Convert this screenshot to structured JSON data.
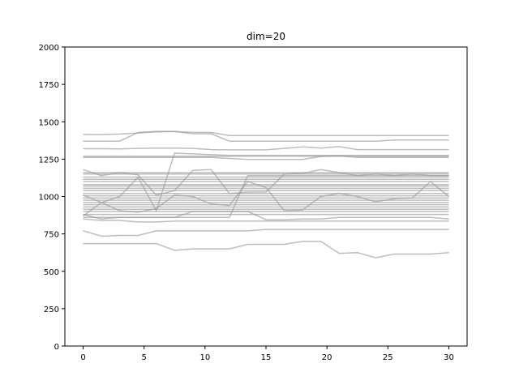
{
  "chart_data": {
    "type": "line",
    "title": "dim=20",
    "xlabel": "",
    "ylabel": "",
    "xlim": [
      -1.5,
      31.5
    ],
    "ylim": [
      0,
      2000
    ],
    "xticks": [
      0,
      5,
      10,
      15,
      20,
      25,
      30
    ],
    "yticks": [
      0,
      250,
      500,
      750,
      1000,
      1250,
      1500,
      1750,
      2000
    ],
    "grid": false,
    "legend": "none",
    "line_color": "#9a9a9a",
    "x": [
      0,
      1.5,
      3,
      4.5,
      6,
      7.5,
      9,
      10.5,
      12,
      13.5,
      15,
      16.5,
      18,
      19.5,
      21,
      22.5,
      24,
      25.5,
      27,
      28.5,
      30
    ],
    "series": [
      {
        "values": [
          1415,
          1414,
          1418,
          1425,
          1432,
          1434,
          1430,
          1428,
          1408,
          1408,
          1408,
          1408,
          1408,
          1408,
          1408,
          1408,
          1408,
          1408,
          1408,
          1408,
          1408
        ]
      },
      {
        "values": [
          1370,
          1370,
          1370,
          1428,
          1436,
          1436,
          1420,
          1420,
          1370,
          1370,
          1370,
          1370,
          1370,
          1370,
          1370,
          1370,
          1370,
          1378,
          1378,
          1378,
          1378
        ]
      },
      {
        "values": [
          1320,
          1320,
          1318,
          1322,
          1324,
          1324,
          1322,
          1314,
          1312,
          1312,
          1312,
          1322,
          1332,
          1324,
          1334,
          1314,
          1314,
          1314,
          1314,
          1314,
          1314
        ]
      },
      {
        "values": [
          1270,
          1270,
          1270,
          1270,
          1270,
          1270,
          1270,
          1270,
          1270,
          1270,
          1270,
          1270,
          1270,
          1270,
          1270,
          1270,
          1270,
          1270,
          1270,
          1270,
          1270
        ]
      },
      {
        "values": [
          1262,
          1262,
          1262,
          1262,
          1262,
          1262,
          1262,
          1262,
          1255,
          1248,
          1248,
          1248,
          1248,
          1268,
          1272,
          1262,
          1262,
          1262,
          1262,
          1262,
          1262
        ]
      },
      {
        "values": [
          1160,
          1160,
          1160,
          1160,
          1160,
          1160,
          1160,
          1160,
          1160,
          1160,
          1160,
          1160,
          1160,
          1160,
          1160,
          1160,
          1160,
          1160,
          1160,
          1160,
          1160
        ]
      },
      {
        "values": [
          1180,
          1140,
          1160,
          1145,
          1010,
          1040,
          1175,
          1180,
          1020,
          1030,
          1030,
          1150,
          1155,
          1180,
          1160,
          1140,
          1150,
          1140,
          1150,
          1140,
          1140
        ]
      },
      {
        "values": [
          1150,
          1150,
          1150,
          1150,
          1150,
          1150,
          1150,
          1150,
          1150,
          1150,
          1150,
          1150,
          1150,
          1150,
          1150,
          1150,
          1150,
          1150,
          1150,
          1150,
          1150
        ]
      },
      {
        "values": [
          1130,
          1130,
          1130,
          1130,
          1130,
          1130,
          1130,
          1130,
          1130,
          1130,
          1130,
          1130,
          1130,
          1130,
          1130,
          1130,
          1130,
          1130,
          1130,
          1130,
          1130
        ]
      },
      {
        "values": [
          1115,
          1115,
          1115,
          1115,
          1115,
          1115,
          1115,
          1115,
          1115,
          1115,
          1115,
          1115,
          1115,
          1115,
          1115,
          1115,
          1115,
          1115,
          1115,
          1115,
          1115
        ]
      },
      {
        "values": [
          1100,
          1100,
          1100,
          1100,
          1100,
          1100,
          1100,
          1100,
          1100,
          1100,
          1100,
          1100,
          1100,
          1100,
          1100,
          1100,
          1100,
          1100,
          1100,
          1100,
          1100
        ]
      },
      {
        "values": [
          1080,
          1080,
          1080,
          1080,
          1080,
          1080,
          1080,
          1080,
          1080,
          1080,
          1080,
          1080,
          1080,
          1080,
          1080,
          1080,
          1080,
          1080,
          1080,
          1080,
          1080
        ]
      },
      {
        "values": [
          1070,
          1070,
          1070,
          1070,
          1070,
          1070,
          1070,
          1070,
          1070,
          1070,
          1070,
          1070,
          1070,
          1070,
          1070,
          1070,
          1070,
          1070,
          1070,
          1070,
          1070
        ]
      },
      {
        "values": [
          1055,
          1055,
          1055,
          1055,
          1055,
          1055,
          1055,
          1055,
          1055,
          1055,
          1055,
          1055,
          1055,
          1055,
          1055,
          1055,
          1055,
          1055,
          1055,
          1055,
          1055
        ]
      },
      {
        "values": [
          1040,
          1040,
          1040,
          1040,
          1040,
          1040,
          1040,
          1040,
          1040,
          1040,
          1040,
          1040,
          1040,
          1040,
          1040,
          1040,
          1040,
          1040,
          1040,
          1040,
          1040
        ]
      },
      {
        "values": [
          1020,
          1020,
          1020,
          1020,
          1020,
          1020,
          1020,
          1020,
          1020,
          1020,
          1020,
          1020,
          1020,
          1020,
          1020,
          1020,
          1020,
          1020,
          1020,
          1020,
          1020
        ]
      },
      {
        "values": [
          1005,
          1005,
          1005,
          1005,
          1005,
          1005,
          1005,
          1005,
          1005,
          1005,
          1005,
          1005,
          1005,
          1005,
          1005,
          1005,
          1005,
          1005,
          1005,
          1005,
          1005
        ]
      },
      {
        "values": [
          990,
          990,
          990,
          990,
          990,
          990,
          990,
          990,
          990,
          990,
          990,
          990,
          990,
          990,
          990,
          990,
          990,
          990,
          990,
          990,
          990
        ]
      },
      {
        "values": [
          975,
          975,
          975,
          975,
          975,
          975,
          975,
          975,
          975,
          975,
          975,
          975,
          975,
          975,
          975,
          975,
          975,
          975,
          975,
          975,
          975
        ]
      },
      {
        "values": [
          960,
          960,
          960,
          960,
          960,
          960,
          960,
          960,
          960,
          960,
          960,
          960,
          960,
          960,
          960,
          960,
          960,
          960,
          960,
          960,
          960
        ]
      },
      {
        "values": [
          945,
          945,
          945,
          945,
          945,
          945,
          945,
          945,
          945,
          945,
          945,
          945,
          945,
          945,
          945,
          945,
          945,
          945,
          945,
          945,
          945
        ]
      },
      {
        "values": [
          930,
          930,
          930,
          930,
          930,
          930,
          930,
          930,
          930,
          930,
          930,
          930,
          930,
          930,
          930,
          930,
          930,
          930,
          930,
          930,
          930
        ]
      },
      {
        "values": [
          915,
          915,
          915,
          915,
          915,
          915,
          915,
          915,
          915,
          915,
          915,
          915,
          915,
          915,
          915,
          915,
          915,
          915,
          915,
          915,
          915
        ]
      },
      {
        "values": [
          900,
          900,
          900,
          900,
          900,
          900,
          900,
          900,
          900,
          900,
          900,
          900,
          900,
          900,
          900,
          900,
          900,
          900,
          900,
          900,
          900
        ]
      },
      {
        "values": [
          880,
          880,
          880,
          880,
          880,
          880,
          880,
          880,
          880,
          880,
          880,
          880,
          880,
          880,
          880,
          880,
          880,
          880,
          880,
          880,
          880
        ]
      },
      {
        "values": [
          870,
          960,
          1000,
          1130,
          905,
          1290,
          1285,
          1280,
          1275,
          1275,
          1275,
          1275,
          1275,
          1275,
          1275,
          1275,
          1275,
          1275,
          1275,
          1275,
          1275
        ]
      },
      {
        "values": [
          1010,
          960,
          905,
          895,
          920,
          1010,
          1000,
          950,
          940,
          1100,
          1060,
          905,
          910,
          1000,
          1020,
          1000,
          965,
          985,
          990,
          1100,
          1000
        ]
      },
      {
        "values": [
          880,
          850,
          860,
          860,
          860,
          860,
          860,
          860,
          860,
          1140,
          1140,
          1140,
          1140,
          1140,
          1140,
          1140,
          1140,
          1140,
          1140,
          1140,
          1140
        ]
      },
      {
        "values": [
          850,
          840,
          840,
          830,
          830,
          835,
          835,
          835,
          835,
          835,
          835,
          835,
          835,
          835,
          835,
          835,
          835,
          835,
          835,
          835,
          835
        ]
      },
      {
        "values": [
          860,
          860,
          860,
          860,
          860,
          860,
          900,
          900,
          900,
          900,
          845,
          845,
          850,
          850,
          860,
          860,
          860,
          860,
          860,
          860,
          850
        ]
      },
      {
        "values": [
          770,
          735,
          740,
          740,
          770,
          770,
          770,
          770,
          770,
          770,
          780,
          780,
          780,
          780,
          780,
          780,
          780,
          780,
          780,
          780,
          780
        ]
      },
      {
        "values": [
          685,
          685,
          685,
          685,
          685,
          640,
          650,
          650,
          650,
          680,
          680,
          680,
          700,
          700,
          620,
          625,
          590,
          615,
          615,
          615,
          625
        ]
      }
    ]
  }
}
